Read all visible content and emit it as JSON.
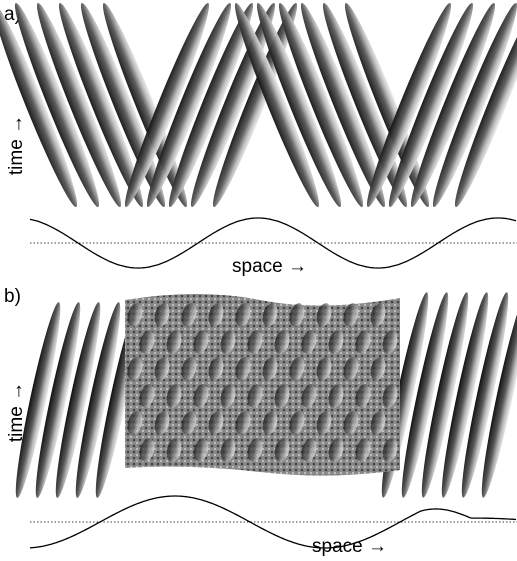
{
  "panels": [
    {
      "label": "a)",
      "y_label": "time →",
      "x_label": "space →"
    },
    {
      "label": "b)",
      "y_label": "time →",
      "x_label": "space →"
    }
  ]
}
